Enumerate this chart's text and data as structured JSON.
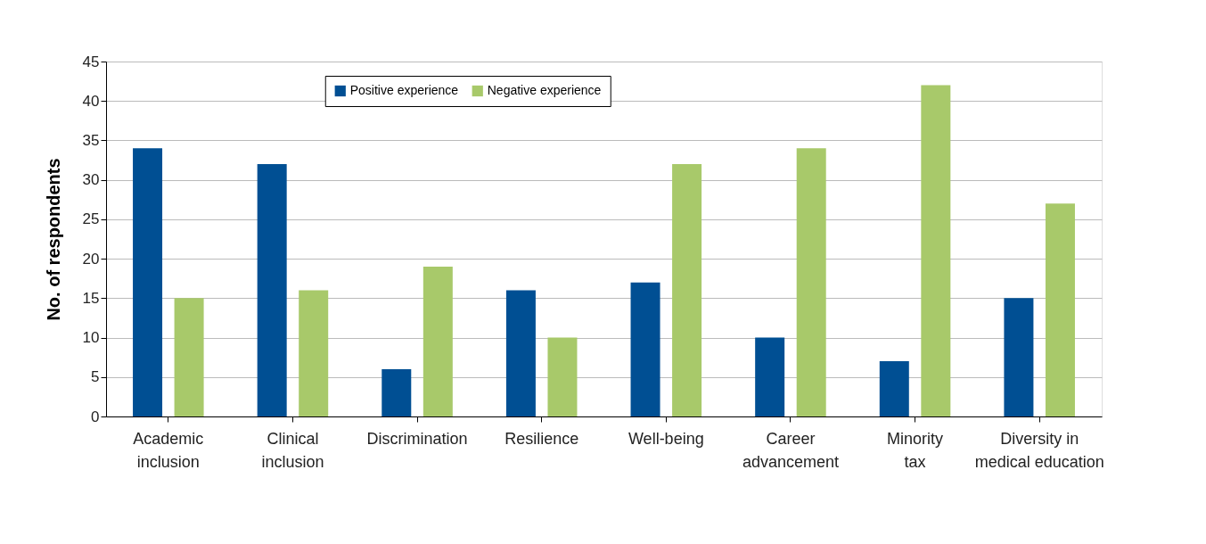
{
  "chart_data": {
    "type": "bar",
    "ylabel": "No. of respondents",
    "categories": [
      "Academic inclusion",
      "Clinical inclusion",
      "Discrimination",
      "Resilience",
      "Well-being",
      "Career advancement",
      "Minority tax",
      "Diversity in medical education"
    ],
    "series": [
      {
        "name": "Positive experience",
        "color": "#004f93",
        "values": [
          34,
          32,
          6,
          16,
          17,
          10,
          7,
          15
        ]
      },
      {
        "name": "Negative experience",
        "color": "#a8c96a",
        "values": [
          15,
          16,
          19,
          10,
          32,
          34,
          42,
          27
        ]
      }
    ],
    "ylim": [
      0,
      45
    ],
    "yticks": [
      0,
      5,
      10,
      15,
      20,
      25,
      30,
      35,
      40,
      45
    ],
    "grid": "y",
    "legend": "top"
  }
}
